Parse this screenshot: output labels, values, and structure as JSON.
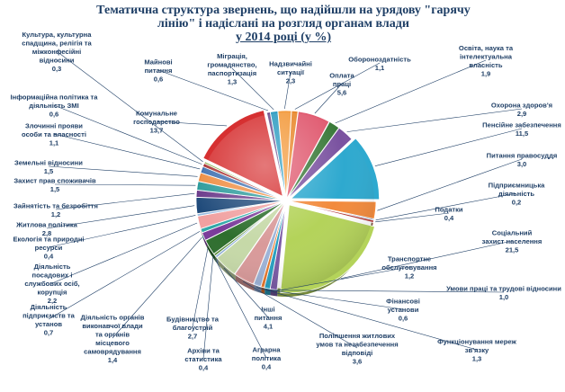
{
  "chart_data": {
    "type": "pie",
    "title": [
      "Тематична структура звернень, що надійшли на урядову \"гарячу",
      "лінію\" і надіслані на розгляд органам влади",
      "у 2014 році (у %)"
    ],
    "slices": [
      {
        "label": "Обороноздатність",
        "value": 1.1,
        "value_text": "1,1",
        "color": "#e8872b"
      },
      {
        "label": "Оплата праці",
        "value": 5.6,
        "value_text": "5,6",
        "color": "#e05a70"
      },
      {
        "label": "Освіта, наука та інтелектуальна власність",
        "value": 1.9,
        "value_text": "1,9",
        "color": "#3a7a3a"
      },
      {
        "label": "Охорона здоров'я",
        "value": 2.9,
        "value_text": "2,9",
        "color": "#7a52a0"
      },
      {
        "label": "Пенсійне забезпечення",
        "value": 11.5,
        "value_text": "11,5",
        "color": "#2ea9cf"
      },
      {
        "label": "Питання правосуддя",
        "value": 3.0,
        "value_text": "3,0",
        "color": "#f28a3c"
      },
      {
        "label": "Підприємницька діяльність",
        "value": 0.2,
        "value_text": "0,2",
        "color": "#4a6fb0"
      },
      {
        "label": "Податки",
        "value": 0.4,
        "value_text": "0,4",
        "color": "#b03030"
      },
      {
        "label": "Соціальний захист населення",
        "value": 21.5,
        "value_text": "21,5",
        "color": "#b4d35a"
      },
      {
        "label": "Транспортне обслуговування",
        "value": 1.2,
        "value_text": "1,2",
        "color": "#7a5aa6"
      },
      {
        "label": "Умови праці та трудові відносини",
        "value": 1.0,
        "value_text": "1,0",
        "color": "#27a0c0"
      },
      {
        "label": "Фінансові установи",
        "value": 0.6,
        "value_text": "0,6",
        "color": "#e8772b"
      },
      {
        "label": "Функціонування мереж зв'язку",
        "value": 1.3,
        "value_text": "1,3",
        "color": "#9db3d8"
      },
      {
        "label": "Поліпшення житлових умов та незабезпечення відповіді",
        "value": 3.6,
        "value_text": "3,6",
        "color": "#d99a9a"
      },
      {
        "label": "Інші питання",
        "value": 4.1,
        "value_text": "4,1",
        "color": "#c6d9a8"
      },
      {
        "label": "Аграрна політика",
        "value": 0.4,
        "value_text": "0,4",
        "color": "#8fb0d8"
      },
      {
        "label": "Архіви та статистика",
        "value": 0.4,
        "value_text": "0,4",
        "color": "#5a8f3a"
      },
      {
        "label": "Будівництво та благоустрій",
        "value": 2.7,
        "value_text": "2,7",
        "color": "#2d6e2d"
      },
      {
        "label": "Діяльність органів виконавчої влади та органів місцевого самоврядування",
        "value": 1.4,
        "value_text": "1,4",
        "color": "#7a3a9a"
      },
      {
        "label": "Діяльність підприємств та установ",
        "value": 0.7,
        "value_text": "0,7",
        "color": "#2fa8a8"
      },
      {
        "label": "Діяльність посадових і службових осіб, корупція",
        "value": 2.2,
        "value_text": "2,2",
        "color": "#f0a0a0"
      },
      {
        "label": "Екологія та природні ресурси",
        "value": 0.4,
        "value_text": "0,4",
        "color": "#95b9e0"
      },
      {
        "label": "Житлова політика",
        "value": 2.8,
        "value_text": "2,8",
        "color": "#1f4a7a"
      },
      {
        "label": "Зайнятість та безробіття",
        "value": 1.2,
        "value_text": "1,2",
        "color": "#6a3a8a"
      },
      {
        "label": "Захист прав споживачів",
        "value": 1.5,
        "value_text": "1,5",
        "color": "#2a9a9a"
      },
      {
        "label": "Земельні відносини",
        "value": 1.5,
        "value_text": "1,5",
        "color": "#ee8c40"
      },
      {
        "label": "Злочинні прояви особи та власності",
        "value": 1.1,
        "value_text": "1,1",
        "color": "#3e6fb0"
      },
      {
        "label": "Інформаційна політика та діяльність ЗМІ",
        "value": 0.6,
        "value_text": "0,6",
        "color": "#a83232"
      },
      {
        "label": "Культура, культурна спадщина, релігія та міжконфесійні відносини",
        "value": 0.3,
        "value_text": "0,3",
        "color": "#8ab04a"
      },
      {
        "label": "Комунальне господарство",
        "value": 13.7,
        "value_text": "13,7",
        "color": "#d63031"
      },
      {
        "label": "Майнові питання",
        "value": 0.6,
        "value_text": "0,6",
        "color": "#6a4a8a"
      },
      {
        "label": "Міграція, громадянство, паспортизація",
        "value": 1.3,
        "value_text": "1,3",
        "color": "#2a9ac0"
      },
      {
        "label": "Надзвичайні ситуації",
        "value": 2.3,
        "value_text": "2,3",
        "color": "#f39a3c"
      }
    ]
  }
}
